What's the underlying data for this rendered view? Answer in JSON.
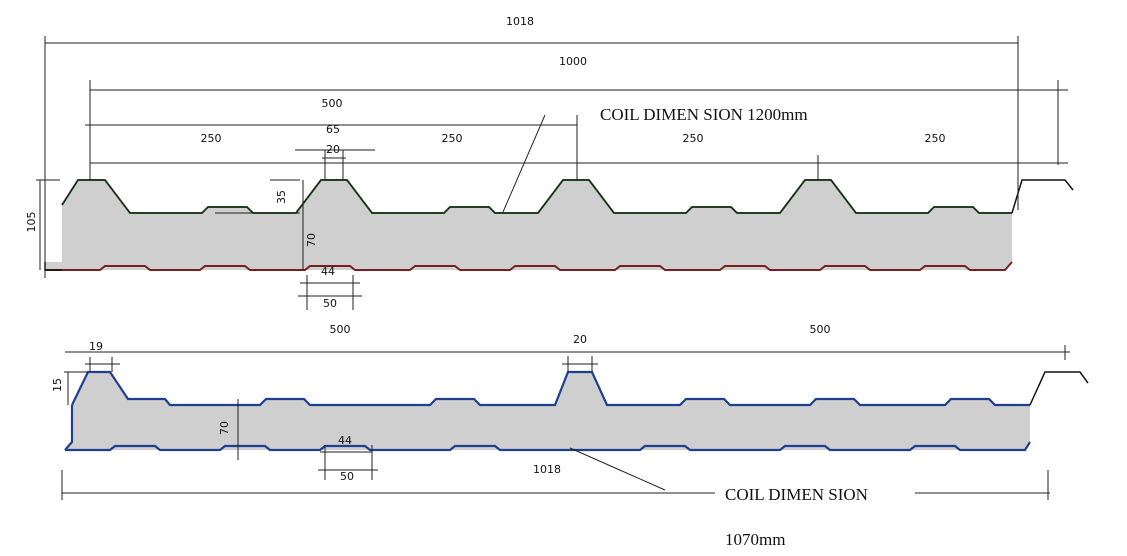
{
  "top_panel": {
    "dimensions": [
      1018,
      1000,
      500,
      250,
      250,
      250,
      250,
      65,
      20,
      35,
      105,
      70,
      44,
      50
    ],
    "coil_label": "COIL  DIMEN SION  1200mm"
  },
  "bottom_panel": {
    "dimensions": [
      500,
      500,
      19,
      20,
      15,
      70,
      44,
      50,
      1018
    ],
    "coil_label": "COIL  DIMEN SION",
    "coil_size": "1070mm"
  }
}
